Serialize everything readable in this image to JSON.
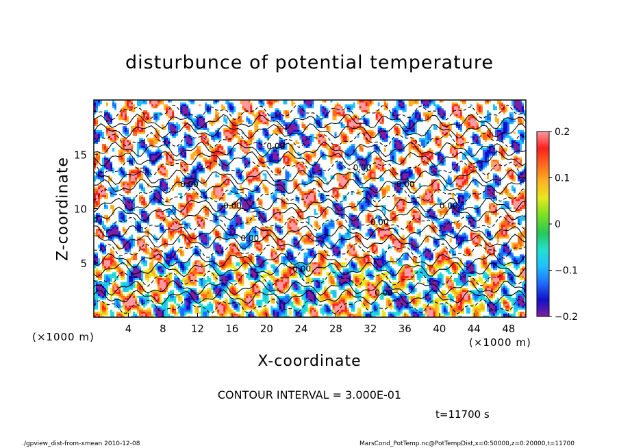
{
  "chart_data": {
    "type": "heatmap",
    "title": "disturbunce of potential temperature",
    "xlabel": "X-coordinate",
    "ylabel": "Z-coordinate",
    "x_unit_label": "(×1000 m)",
    "y_unit_label": "(×1000 m)",
    "xlim": [
      0,
      50
    ],
    "ylim": [
      0,
      20
    ],
    "x_ticks": [
      4,
      8,
      12,
      16,
      20,
      24,
      28,
      32,
      36,
      40,
      44,
      48
    ],
    "y_ticks": [
      5,
      10,
      15
    ],
    "colorbar": {
      "ticks": [
        0.2,
        0.1,
        0,
        -0.1,
        -0.2
      ],
      "tick_labels": [
        "0.2",
        "0.1",
        "0",
        "−0.1",
        "−0.2"
      ],
      "range": [
        -0.2,
        0.2
      ],
      "colors": [
        "#7e1fa0",
        "#1010c8",
        "#1f6cff",
        "#1fc0ff",
        "#22e0d0",
        "#25c85a",
        "#7be21f",
        "#e8e81f",
        "#ffb21f",
        "#ff6a1f",
        "#ff1f1f",
        "#ff9aa0"
      ]
    },
    "contour_labels": [
      "0.00"
    ],
    "contour_interval_text": "CONTOUR INTERVAL = 3.000E-01",
    "time_text": "t=11700 s"
  },
  "footer": {
    "left": "./gpview_dist-from-xmean  2010-12-08",
    "right": "MarsCond_PotTemp.nc@PotTempDist,x=0:50000,z=0:20000,t=11700"
  }
}
